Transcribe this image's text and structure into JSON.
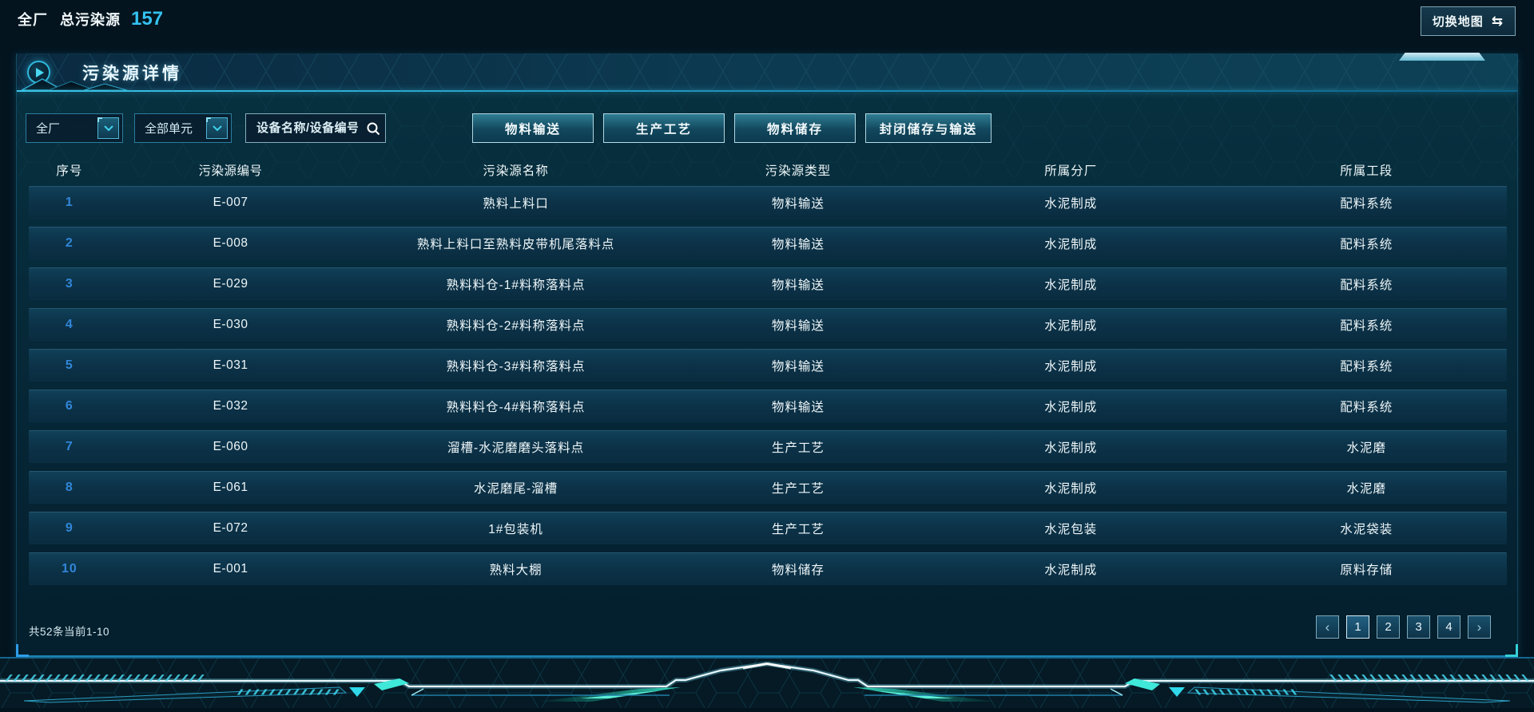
{
  "topbar": {
    "scope": "全厂",
    "total_label": "总污染源",
    "total_value": "157",
    "switch_map_label": "切换地图",
    "swap_icon": "⇆"
  },
  "panel": {
    "title": "污染源详情"
  },
  "filters": {
    "factory_select_value": "全厂",
    "unit_select_value": "全部单元",
    "search_placeholder": "设备名称/设备编号",
    "type_buttons": [
      "物料输送",
      "生产工艺",
      "物料储存",
      "封闭储存与输送"
    ]
  },
  "table": {
    "headers": [
      "序号",
      "污染源编号",
      "污染源名称",
      "污染源类型",
      "所属分厂",
      "所属工段"
    ],
    "rows": [
      [
        "1",
        "E-007",
        "熟料上料口",
        "物料输送",
        "水泥制成",
        "配料系统"
      ],
      [
        "2",
        "E-008",
        "熟料上料口至熟料皮带机尾落料点",
        "物料输送",
        "水泥制成",
        "配料系统"
      ],
      [
        "3",
        "E-029",
        "熟料料仓-1#料称落料点",
        "物料输送",
        "水泥制成",
        "配料系统"
      ],
      [
        "4",
        "E-030",
        "熟料料仓-2#料称落料点",
        "物料输送",
        "水泥制成",
        "配料系统"
      ],
      [
        "5",
        "E-031",
        "熟料料仓-3#料称落料点",
        "物料输送",
        "水泥制成",
        "配料系统"
      ],
      [
        "6",
        "E-032",
        "熟料料仓-4#料称落料点",
        "物料输送",
        "水泥制成",
        "配料系统"
      ],
      [
        "7",
        "E-060",
        "溜槽-水泥磨磨头落料点",
        "生产工艺",
        "水泥制成",
        "水泥磨"
      ],
      [
        "8",
        "E-061",
        "水泥磨尾-溜槽",
        "生产工艺",
        "水泥制成",
        "水泥磨"
      ],
      [
        "9",
        "E-072",
        "1#包装机",
        "生产工艺",
        "水泥包装",
        "水泥袋装"
      ],
      [
        "10",
        "E-001",
        "熟料大棚",
        "物料储存",
        "水泥制成",
        "原料存储"
      ]
    ]
  },
  "pagination": {
    "summary": "共52条当前1-10",
    "prev": "‹",
    "pages": [
      "1",
      "2",
      "3",
      "4"
    ],
    "active_page": "1",
    "next": "›"
  },
  "colors": {
    "accent_cyan": "#35c1f0",
    "row_number_blue": "#3186d8",
    "glow_teal": "#2ee8c4",
    "panel_line_blue": "#1e84b2"
  }
}
